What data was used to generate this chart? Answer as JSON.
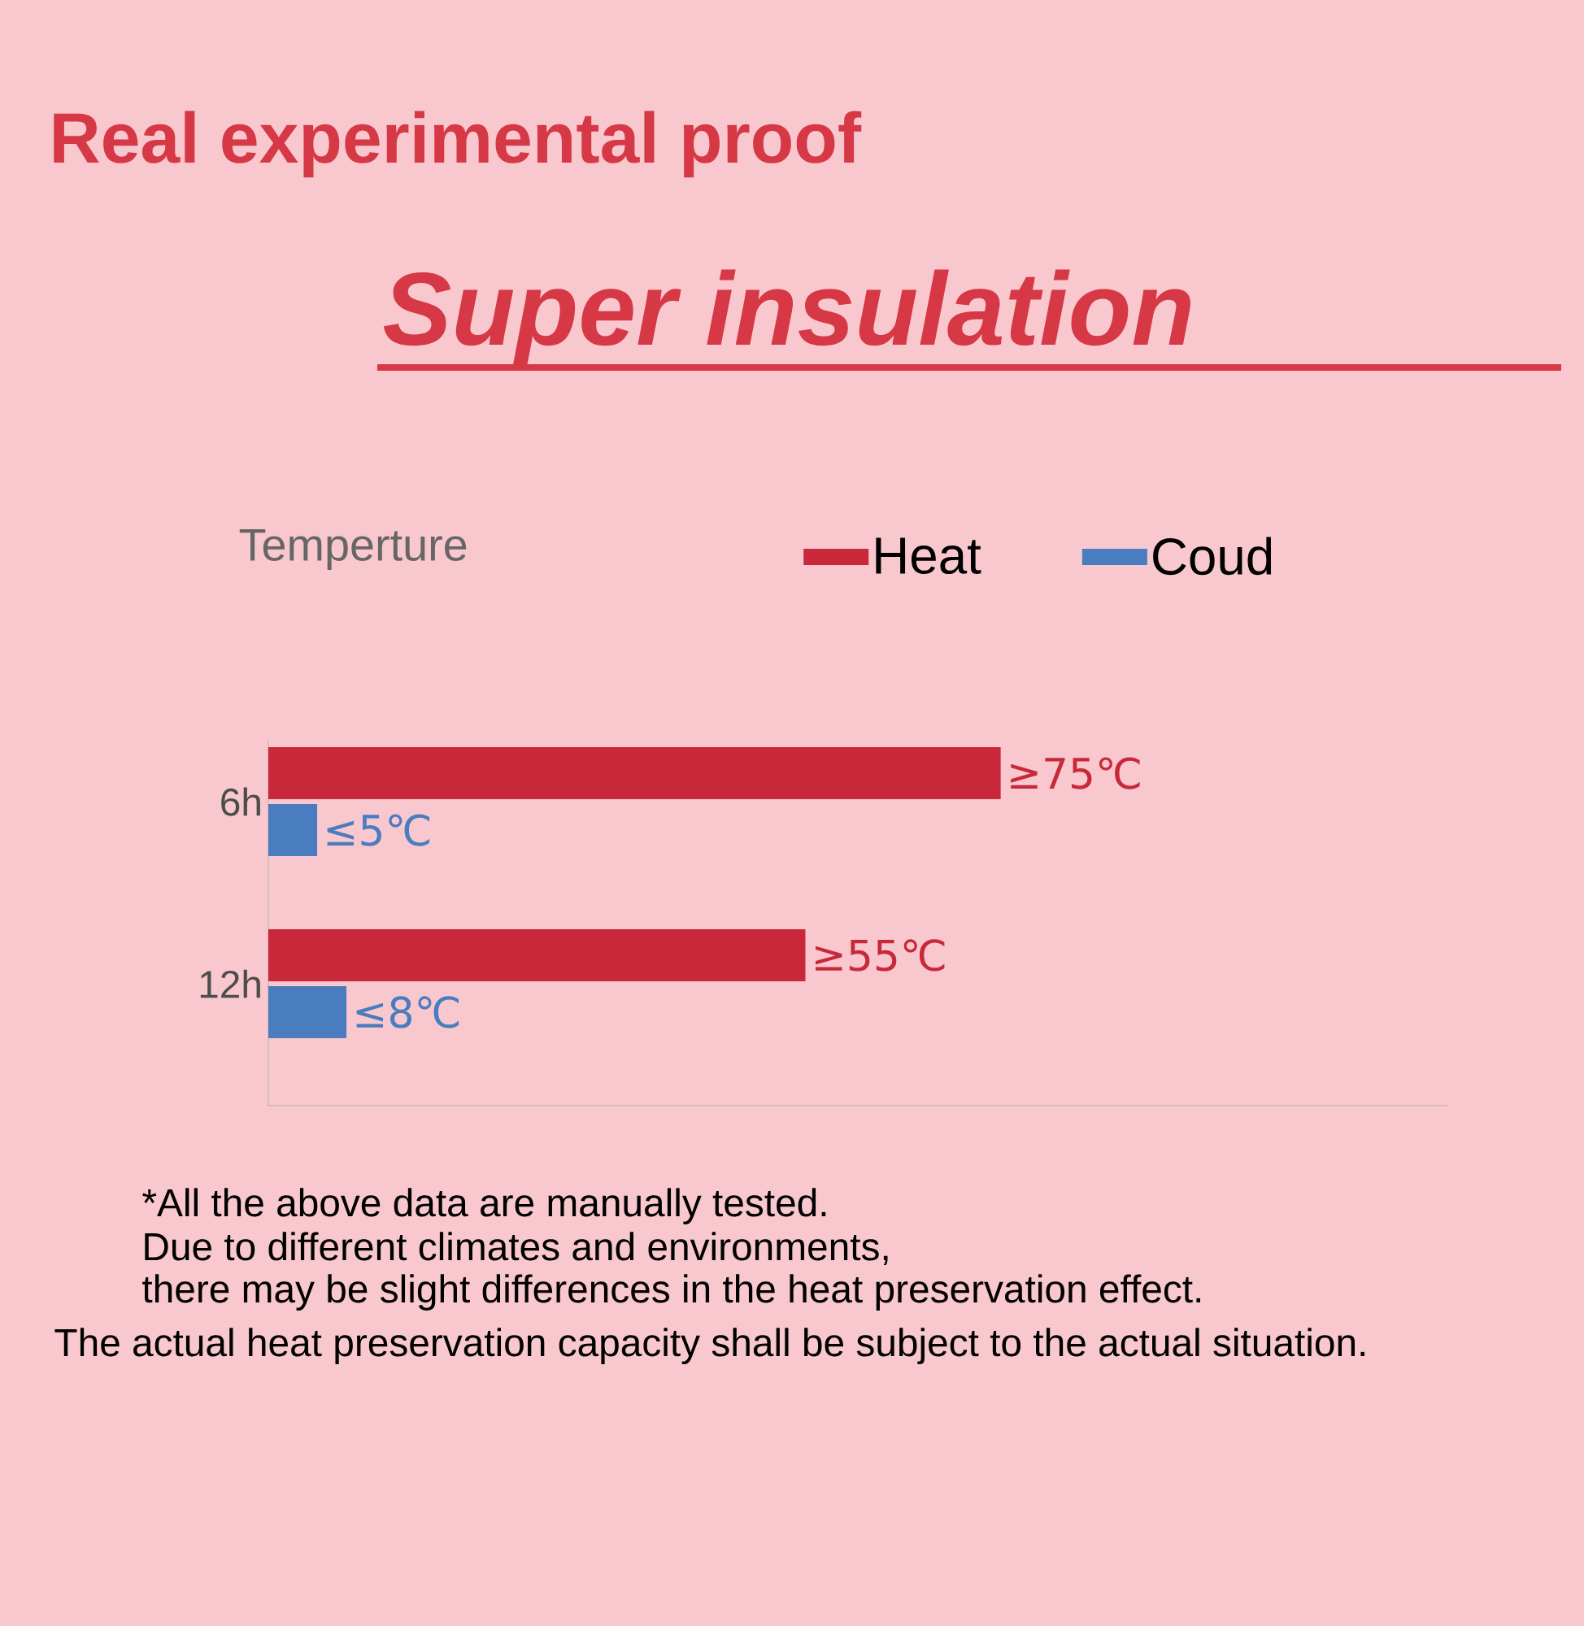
{
  "chart_data": {
    "type": "bar",
    "title": "Real experimental proof",
    "subtitle": "Super insulation",
    "xlabel": "Temperture",
    "orientation": "horizontal",
    "categories": [
      "6h",
      "12h"
    ],
    "series": [
      {
        "name": "Heat",
        "color": "#c8283a",
        "values": [
          75,
          55
        ],
        "value_labels": [
          "≥75℃",
          "≥55℃"
        ]
      },
      {
        "name": "Coud",
        "color": "#4a7cc0",
        "values": [
          5,
          8
        ],
        "value_labels": [
          "≤5℃",
          "≤8℃"
        ]
      }
    ],
    "legend": "top",
    "annotations": [
      "*All the above data are manually tested.",
      "Due to different climates and environments,",
      "there may be slight differences in the heat preservation effect.",
      "The actual heat preservation capacity shall be subject to the actual situation."
    ]
  }
}
